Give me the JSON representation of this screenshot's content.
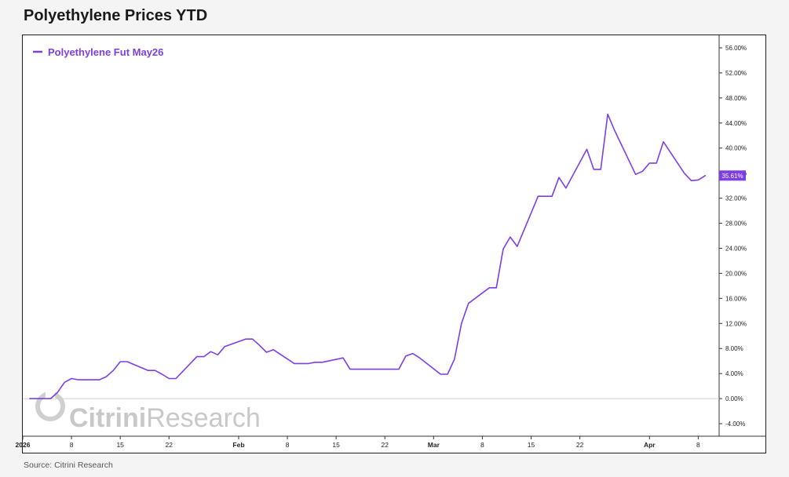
{
  "page": {
    "title": "Polyethylene Prices YTD",
    "source": "Source: Citrini Research"
  },
  "watermark": {
    "brand": "CitriniResearch"
  },
  "chart_data": {
    "type": "line",
    "title": "Polyethylene Prices YTD",
    "xlabel": "",
    "ylabel": "",
    "ylim": [
      -6,
      58
    ],
    "y_ticks": [
      56,
      52,
      48,
      44,
      40,
      36,
      32,
      28,
      24,
      20,
      16,
      12,
      8,
      4,
      0,
      -4
    ],
    "y_tick_labels": [
      "56.00%",
      "52.00%",
      "48.00%",
      "44.00%",
      "40.00%",
      "36.00%",
      "32.00%",
      "28.00%",
      "24.00%",
      "20.00%",
      "16.00%",
      "12.00%",
      "8.00%",
      "4.00%",
      "0.00%",
      "-4.00%"
    ],
    "x_range": [
      "2026-01-01",
      "2026-04-11"
    ],
    "x_ticks": [
      {
        "date": "2026-01-01",
        "label": "2026"
      },
      {
        "date": "2026-01-08",
        "label": "8"
      },
      {
        "date": "2026-01-15",
        "label": "15"
      },
      {
        "date": "2026-01-22",
        "label": "22"
      },
      {
        "date": "2026-02-01",
        "label": "Feb"
      },
      {
        "date": "2026-02-08",
        "label": "8"
      },
      {
        "date": "2026-02-15",
        "label": "15"
      },
      {
        "date": "2026-02-22",
        "label": "22"
      },
      {
        "date": "2026-03-01",
        "label": "Mar"
      },
      {
        "date": "2026-03-08",
        "label": "8"
      },
      {
        "date": "2026-03-15",
        "label": "15"
      },
      {
        "date": "2026-03-22",
        "label": "22"
      },
      {
        "date": "2026-04-01",
        "label": "Apr"
      },
      {
        "date": "2026-04-08",
        "label": "8"
      }
    ],
    "grid": false,
    "zero_line": true,
    "legend_position": "top-left",
    "last_value_label": "35.61%",
    "series": [
      {
        "name": "Polyethylene Fut May26",
        "color": "#7b3fe4",
        "points": [
          [
            "2026-01-02",
            0.0
          ],
          [
            "2026-01-05",
            0.0
          ],
          [
            "2026-01-06",
            1.0
          ],
          [
            "2026-01-07",
            2.6
          ],
          [
            "2026-01-08",
            3.2
          ],
          [
            "2026-01-09",
            3.0
          ],
          [
            "2026-01-12",
            3.0
          ],
          [
            "2026-01-13",
            3.5
          ],
          [
            "2026-01-14",
            4.5
          ],
          [
            "2026-01-15",
            5.9
          ],
          [
            "2026-01-16",
            5.9
          ],
          [
            "2026-01-19",
            4.5
          ],
          [
            "2026-01-20",
            4.5
          ],
          [
            "2026-01-21",
            3.9
          ],
          [
            "2026-01-22",
            3.2
          ],
          [
            "2026-01-23",
            3.2
          ],
          [
            "2026-01-26",
            6.7
          ],
          [
            "2026-01-27",
            6.7
          ],
          [
            "2026-01-28",
            7.5
          ],
          [
            "2026-01-29",
            7.0
          ],
          [
            "2026-01-30",
            8.3
          ],
          [
            "2026-02-02",
            9.5
          ],
          [
            "2026-02-03",
            9.5
          ],
          [
            "2026-02-04",
            8.5
          ],
          [
            "2026-02-05",
            7.4
          ],
          [
            "2026-02-06",
            7.8
          ],
          [
            "2026-02-09",
            5.6
          ],
          [
            "2026-02-10",
            5.6
          ],
          [
            "2026-02-11",
            5.6
          ],
          [
            "2026-02-12",
            5.8
          ],
          [
            "2026-02-13",
            5.8
          ],
          [
            "2026-02-16",
            6.5
          ],
          [
            "2026-02-17",
            4.7
          ],
          [
            "2026-02-23",
            4.7
          ],
          [
            "2026-02-24",
            4.7
          ],
          [
            "2026-02-25",
            6.8
          ],
          [
            "2026-02-26",
            7.2
          ],
          [
            "2026-02-27",
            6.5
          ],
          [
            "2026-03-02",
            3.9
          ],
          [
            "2026-03-03",
            3.9
          ],
          [
            "2026-03-04",
            6.3
          ],
          [
            "2026-03-05",
            12.0
          ],
          [
            "2026-03-06",
            15.2
          ],
          [
            "2026-03-09",
            17.7
          ],
          [
            "2026-03-10",
            17.7
          ],
          [
            "2026-03-11",
            23.9
          ],
          [
            "2026-03-12",
            25.8
          ],
          [
            "2026-03-13",
            24.3
          ],
          [
            "2026-03-16",
            32.3
          ],
          [
            "2026-03-17",
            32.3
          ],
          [
            "2026-03-18",
            32.3
          ],
          [
            "2026-03-19",
            35.3
          ],
          [
            "2026-03-20",
            33.6
          ],
          [
            "2026-03-23",
            39.8
          ],
          [
            "2026-03-24",
            36.6
          ],
          [
            "2026-03-25",
            36.6
          ],
          [
            "2026-03-26",
            45.4
          ],
          [
            "2026-03-27",
            42.8
          ],
          [
            "2026-03-30",
            35.8
          ],
          [
            "2026-03-31",
            36.3
          ],
          [
            "2026-04-01",
            37.6
          ],
          [
            "2026-04-02",
            37.6
          ],
          [
            "2026-04-03",
            41.0
          ],
          [
            "2026-04-06",
            36.0
          ],
          [
            "2026-04-07",
            34.8
          ],
          [
            "2026-04-08",
            34.9
          ],
          [
            "2026-04-09",
            35.61
          ]
        ]
      }
    ]
  }
}
